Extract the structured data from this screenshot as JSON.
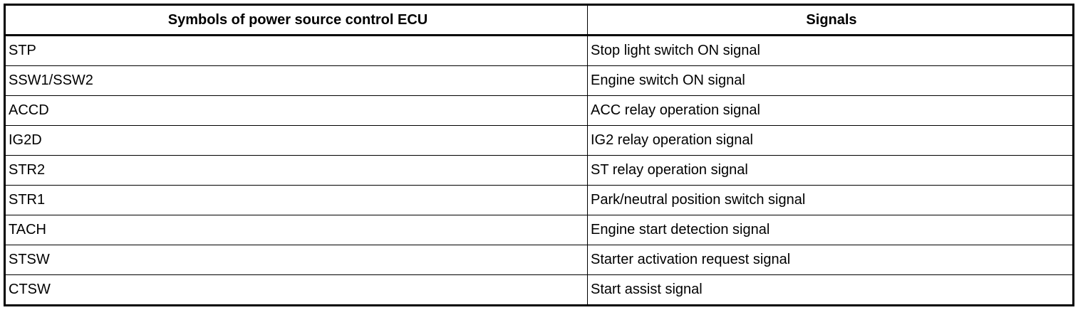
{
  "table": {
    "headers": [
      "Symbols of power source control ECU",
      "Signals"
    ],
    "rows": [
      [
        "STP",
        "Stop light switch ON signal"
      ],
      [
        "SSW1/SSW2",
        "Engine switch ON signal"
      ],
      [
        "ACCD",
        "ACC relay operation signal"
      ],
      [
        "IG2D",
        "IG2 relay operation signal"
      ],
      [
        "STR2",
        "ST relay operation signal"
      ],
      [
        "STR1",
        "Park/neutral position switch signal"
      ],
      [
        "TACH",
        "Engine start detection signal"
      ],
      [
        "STSW",
        "Starter activation request signal"
      ],
      [
        "CTSW",
        "Start assist signal"
      ]
    ]
  }
}
